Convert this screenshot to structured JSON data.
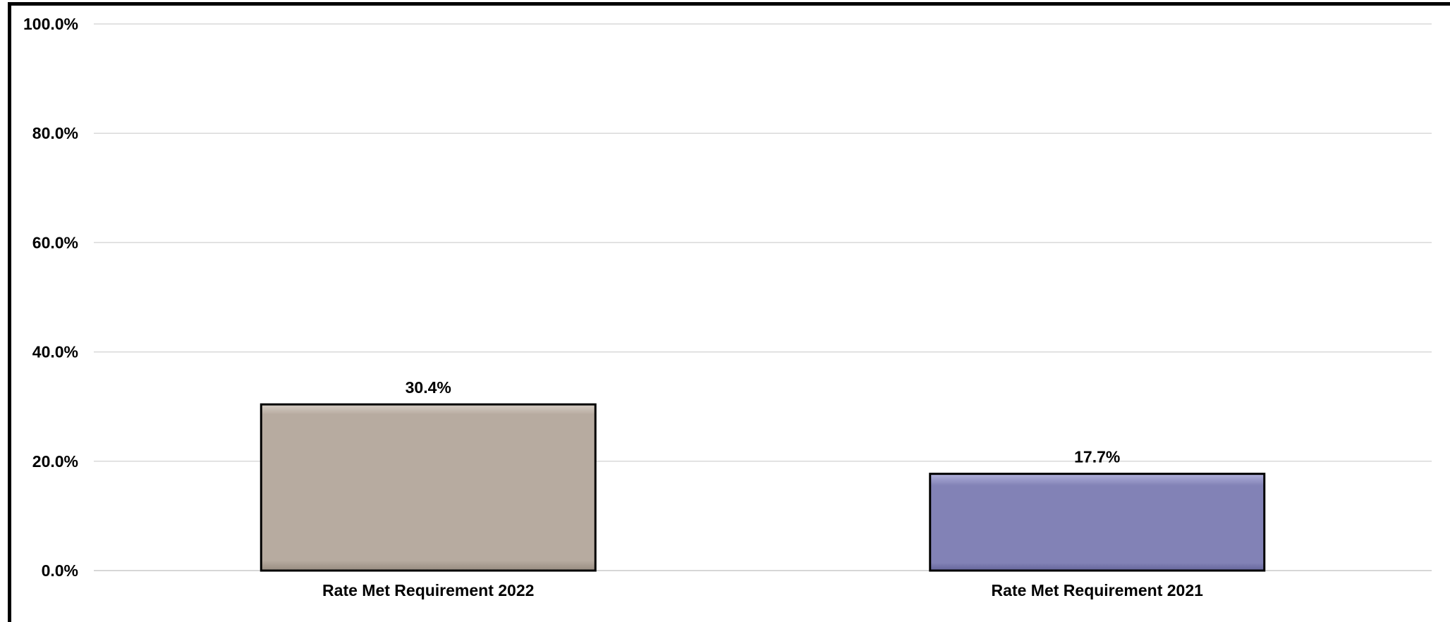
{
  "chart_data": {
    "type": "bar",
    "title": "",
    "xlabel": "",
    "ylabel": "",
    "categories": [
      "Rate Met Requirement 2022",
      "Rate Met Requirement 2021"
    ],
    "values": [
      30.4,
      17.7
    ],
    "value_labels": [
      "30.4%",
      "17.7%"
    ],
    "bar_colors": [
      "#b7aba0",
      "#8282b6"
    ],
    "ylim": [
      0,
      100
    ],
    "y_ticks": [
      0,
      20,
      40,
      60,
      80,
      100
    ],
    "y_tick_labels": [
      "0.0%",
      "20.0%",
      "40.0%",
      "60.0%",
      "80.0%",
      "100.0%"
    ],
    "grid": true,
    "legend": "none"
  }
}
